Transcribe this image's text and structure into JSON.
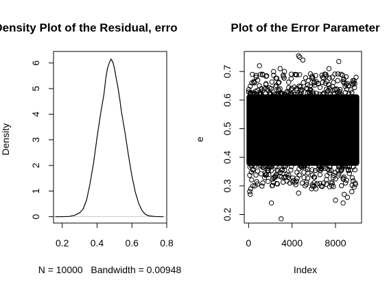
{
  "chart_data": [
    {
      "type": "line",
      "title": "Density Plot of the Residual, erro",
      "ylabel": "Density",
      "xlabel": "N = 10000   Bandwidth = 0.00948",
      "xlim": [
        0.15,
        0.8
      ],
      "ylim": [
        -0.25,
        6.45
      ],
      "x_ticks": [
        0.2,
        0.4,
        0.6,
        0.8
      ],
      "x_tick_labels": [
        "0.2",
        "0.4",
        "0.6",
        "0.8"
      ],
      "y_ticks": [
        0,
        1,
        2,
        3,
        4,
        5,
        6
      ],
      "y_tick_labels": [
        "0",
        "1",
        "2",
        "3",
        "4",
        "5",
        "6"
      ],
      "grid": false,
      "baseline": 0,
      "series": [
        {
          "x": [
            0.16,
            0.2,
            0.24,
            0.27,
            0.3,
            0.32,
            0.34,
            0.36,
            0.38,
            0.4,
            0.42,
            0.44,
            0.45,
            0.46,
            0.47,
            0.48,
            0.49,
            0.5,
            0.51,
            0.52,
            0.53,
            0.54,
            0.56,
            0.58,
            0.6,
            0.62,
            0.64,
            0.66,
            0.68,
            0.7,
            0.73,
            0.76,
            0.78
          ],
          "y": [
            0.0,
            0.0,
            0.01,
            0.05,
            0.15,
            0.3,
            0.65,
            1.3,
            2.1,
            3.1,
            4.0,
            4.8,
            5.4,
            5.8,
            6.0,
            6.15,
            6.05,
            5.8,
            5.4,
            5.05,
            4.6,
            4.1,
            3.3,
            2.4,
            1.6,
            0.95,
            0.5,
            0.22,
            0.08,
            0.03,
            0.01,
            0.0,
            0.0
          ]
        }
      ]
    },
    {
      "type": "scatter",
      "title": "Plot of the Error Parameter",
      "xlabel": "Index",
      "ylabel": "e",
      "xlim": [
        -400,
        10400
      ],
      "ylim": [
        0.17,
        0.77
      ],
      "x_ticks": [
        0,
        4000,
        8000
      ],
      "x_tick_labels": [
        "0",
        "4000",
        "8000"
      ],
      "y_ticks": [
        0.2,
        0.3,
        0.4,
        0.5,
        0.6,
        0.7
      ],
      "y_tick_labels": [
        "0.2",
        "0.3",
        "0.4",
        "0.5",
        "0.6",
        "0.7"
      ],
      "grid": false,
      "marker": "open-circle",
      "n_points": 10000,
      "dense_band": {
        "x_range": [
          0,
          10000
        ],
        "y_range": [
          0.37,
          0.62
        ]
      },
      "series": [
        {
          "x": [
            4600,
            4700,
            8300,
            5000,
            7400,
            1000,
            2900,
            3300,
            8500,
            2300,
            2100,
            3000,
            8700,
            8000,
            8800,
            4600,
            9100,
            6200,
            9500,
            100,
            200,
            400,
            700,
            1100,
            3800,
            5200,
            5800,
            7100,
            7700,
            9900,
            150,
            300,
            6900,
            600
          ],
          "y": [
            0.755,
            0.75,
            0.735,
            0.74,
            0.71,
            0.72,
            0.71,
            0.7,
            0.69,
            0.7,
            0.24,
            0.185,
            0.24,
            0.25,
            0.27,
            0.275,
            0.26,
            0.29,
            0.28,
            0.28,
            0.29,
            0.3,
            0.68,
            0.69,
            0.31,
            0.3,
            0.29,
            0.69,
            0.68,
            0.68,
            0.27,
            0.66,
            0.31,
            0.3
          ]
        }
      ]
    }
  ]
}
